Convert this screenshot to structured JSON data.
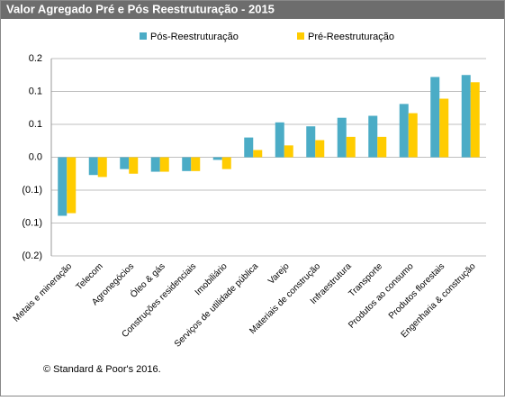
{
  "chart_data": {
    "type": "bar",
    "title": "Valor Agregado Pré e Pós Reestruturação  - 2015",
    "categories": [
      "Metais e mineração",
      "Telecom",
      "Agronegócios",
      "Óleo & gás",
      "Construções residenciais",
      "Imobiliário",
      "Serviços de utilidade pública",
      "Varejo",
      "Materiais de construção",
      "Infraestrutura",
      "Transporte",
      "Produtos ao consumo",
      "Produtos florestais",
      "Engenharia & construção"
    ],
    "series": [
      {
        "name": "Pós-Reestruturação",
        "color": "#4bacc6",
        "values": [
          -0.089,
          -0.027,
          -0.018,
          -0.022,
          -0.021,
          -0.004,
          0.03,
          0.053,
          0.047,
          0.06,
          0.063,
          0.081,
          0.122,
          0.125
        ]
      },
      {
        "name": "Pré-Reestruturação",
        "color": "#ffcc00",
        "values": [
          -0.085,
          -0.03,
          -0.025,
          -0.022,
          -0.021,
          -0.018,
          0.011,
          0.018,
          0.026,
          0.031,
          0.031,
          0.067,
          0.089,
          0.114
        ]
      }
    ],
    "ylim": [
      -0.15,
      0.15
    ],
    "yticks": [
      {
        "value": 0.15,
        "label": "0.2"
      },
      {
        "value": 0.1,
        "label": "0.1"
      },
      {
        "value": 0.05,
        "label": "0.1"
      },
      {
        "value": 0,
        "label": "0.0"
      },
      {
        "value": -0.05,
        "label": "(0.1)"
      },
      {
        "value": -0.1,
        "label": "(0.1)"
      },
      {
        "value": -0.15,
        "label": "(0.2)"
      }
    ],
    "grid": true,
    "source": "© Standard & Poor's 2016."
  }
}
